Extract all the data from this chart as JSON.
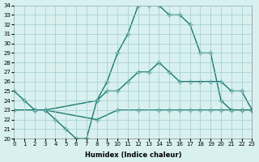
{
  "xlabel": "Humidex (Indice chaleur)",
  "ylabel": "",
  "bg_color": "#d8f0f0",
  "line_color": "#1a7a6e",
  "grid_color": "#a0cccc",
  "xmin": 0,
  "xmax": 23,
  "ymin": 20,
  "ymax": 34,
  "series1_x": [
    0,
    1,
    2,
    3,
    4,
    5,
    6,
    7,
    8,
    9,
    10,
    11,
    12,
    13,
    14,
    15,
    16,
    17,
    18,
    19,
    20,
    21,
    22,
    23
  ],
  "series1_y": [
    25,
    24,
    23,
    23,
    22,
    21,
    20,
    20,
    24,
    26,
    29,
    31,
    34,
    34,
    34,
    33,
    33,
    32,
    29,
    29,
    24,
    23,
    23,
    23
  ],
  "series2_x": [
    0,
    2,
    3,
    8,
    9,
    10,
    11,
    12,
    13,
    14,
    15,
    16,
    17,
    18,
    19,
    20,
    21,
    22,
    23
  ],
  "series2_y": [
    23,
    23,
    23,
    24,
    25,
    25,
    26,
    27,
    27,
    28,
    27,
    26,
    26,
    26,
    26,
    26,
    25,
    25,
    23
  ],
  "series3_x": [
    0,
    2,
    3,
    8,
    10,
    12,
    14,
    15,
    16,
    17,
    18,
    19,
    20,
    21,
    22,
    23
  ],
  "series3_y": [
    23,
    23,
    23,
    22,
    23,
    23,
    23,
    23,
    23,
    23,
    23,
    23,
    23,
    23,
    23,
    23
  ]
}
